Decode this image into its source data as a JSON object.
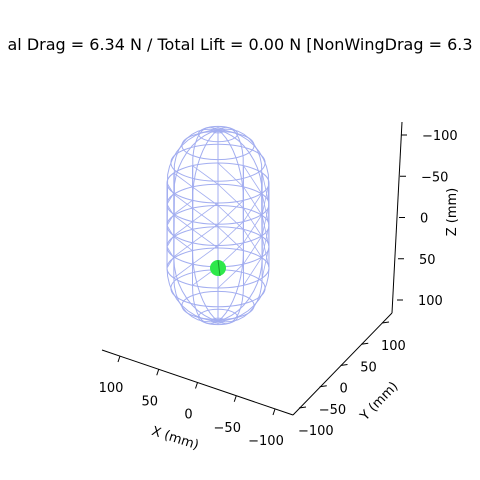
{
  "chart_data": {
    "type": "3d-wireframe",
    "title": "al Drag = 6.34 N / Total Lift = 0.00 N [NonWingDrag = 6.3",
    "xlabel": "X (mm)",
    "ylabel": "Y (mm)",
    "zlabel": "Z (mm)",
    "x_ticks": [
      "100",
      "50",
      "0",
      "−50",
      "−100"
    ],
    "y_ticks": [
      "−100",
      "−50",
      "0",
      "50",
      "100"
    ],
    "z_ticks": [
      "−100",
      "−50",
      "0",
      "50",
      "100"
    ],
    "z_inverted": true,
    "body": {
      "shape": "capsule",
      "radius_mm": 50,
      "cylinder_z_range_mm": [
        -50,
        50
      ],
      "wire_color": "#a3aef0"
    },
    "marker": {
      "color": "#2ee84a",
      "z_mm": 50
    }
  }
}
